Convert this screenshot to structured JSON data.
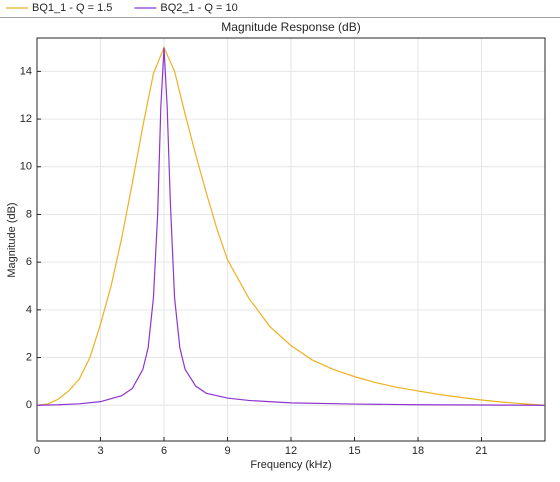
{
  "chart_data": {
    "type": "line",
    "title": "Magnitude Response (dB)",
    "xlabel": "Frequency (kHz)",
    "ylabel": "Magnitude (dB)",
    "xlim": [
      0,
      24
    ],
    "ylim": [
      -1.5,
      15.4
    ],
    "xticks": [
      0,
      3,
      6,
      9,
      12,
      15,
      18,
      21
    ],
    "yticks": [
      0,
      2,
      4,
      6,
      8,
      10,
      12,
      14
    ],
    "grid": true,
    "legend": "top",
    "series": [
      {
        "name": "BQ1_1 - Q = 1.5",
        "color": "#edb120",
        "x": [
          0,
          0.5,
          1,
          1.5,
          2,
          2.5,
          3,
          3.5,
          4,
          4.5,
          5,
          5.5,
          6,
          6.5,
          7,
          7.5,
          8,
          8.5,
          9,
          10,
          11,
          12,
          13,
          14,
          15,
          16,
          17,
          18,
          19,
          20,
          21,
          22,
          23,
          24
        ],
        "values": [
          0,
          0.05,
          0.25,
          0.6,
          1.1,
          2.0,
          3.4,
          5.0,
          7.0,
          9.3,
          11.7,
          13.9,
          15,
          14.0,
          12.2,
          10.5,
          8.9,
          7.4,
          6.1,
          4.5,
          3.3,
          2.5,
          1.9,
          1.5,
          1.2,
          0.95,
          0.75,
          0.6,
          0.45,
          0.33,
          0.22,
          0.13,
          0.06,
          0
        ]
      },
      {
        "name": "BQ2_1 - Q = 10",
        "color": "#8e35cf",
        "x": [
          0,
          1,
          2,
          3,
          4,
          4.5,
          5,
          5.25,
          5.5,
          5.7,
          5.85,
          6,
          6.15,
          6.3,
          6.5,
          6.75,
          7,
          7.5,
          8,
          9,
          10,
          12,
          15,
          18,
          21,
          24
        ],
        "values": [
          0,
          0.02,
          0.06,
          0.15,
          0.4,
          0.7,
          1.5,
          2.4,
          4.5,
          8,
          12.5,
          15,
          12.5,
          8.5,
          4.5,
          2.4,
          1.5,
          0.8,
          0.5,
          0.3,
          0.2,
          0.1,
          0.05,
          0.02,
          0.01,
          0
        ]
      }
    ]
  }
}
